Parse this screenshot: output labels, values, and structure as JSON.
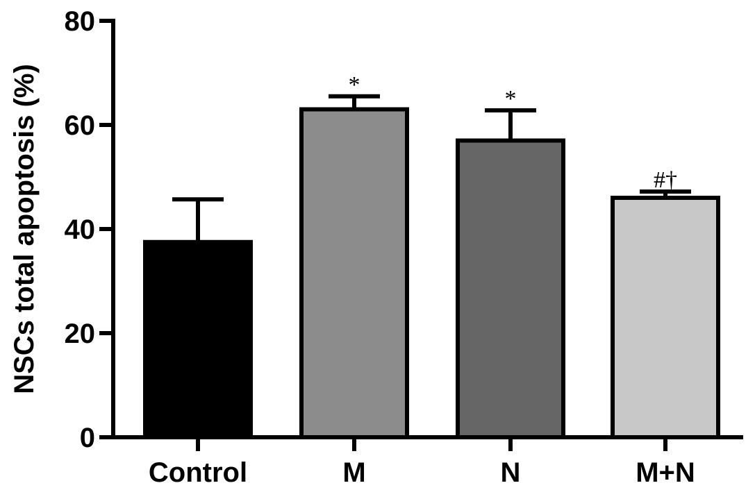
{
  "chart_data": {
    "type": "bar",
    "categories": [
      "Control",
      "M",
      "N",
      "M+N"
    ],
    "values": [
      37.5,
      63,
      57,
      46
    ],
    "errors": [
      8.2,
      2.5,
      5.8,
      1.2
    ],
    "annotations": [
      "",
      "*",
      "*",
      "#†"
    ],
    "ylabel": "NSCs total apoptosis (%)",
    "xlabel": "",
    "ylim": [
      0,
      80
    ],
    "yticks": [
      "0",
      "20",
      "40",
      "60",
      "80"
    ],
    "bar_colors": [
      "#000000",
      "#8c8c8c",
      "#666666",
      "#c8c8c8"
    ],
    "grid": false,
    "legend": "none"
  }
}
